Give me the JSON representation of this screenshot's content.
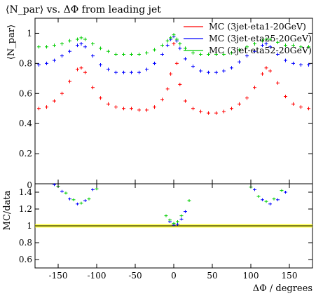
{
  "chart_data": [
    {
      "type": "scatter",
      "title": "⟨N_par⟩ vs. ΔΦ from leading jet",
      "ylabel": "⟨N_par⟩",
      "xlabel": "",
      "xlim": [
        -180,
        180
      ],
      "ylim": [
        0,
        1.1
      ],
      "yticks": [
        "0.2",
        "0.4",
        "0.6",
        "0.8",
        "1"
      ],
      "legend_position": "top-right",
      "series": [
        {
          "name": "MC (3jet-eta1-20GeV)",
          "color": "#ff0000",
          "x": [
            -175,
            -165,
            -155,
            -145,
            -135,
            -125,
            -120,
            -115,
            -105,
            -95,
            -85,
            -75,
            -65,
            -55,
            -45,
            -35,
            -25,
            -15,
            -8,
            -4,
            0,
            4,
            8,
            15,
            25,
            35,
            45,
            55,
            65,
            75,
            85,
            95,
            105,
            115,
            120,
            125,
            135,
            145,
            155,
            165,
            175
          ],
          "y": [
            0.5,
            0.51,
            0.55,
            0.6,
            0.68,
            0.76,
            0.77,
            0.74,
            0.64,
            0.57,
            0.53,
            0.51,
            0.5,
            0.5,
            0.49,
            0.49,
            0.51,
            0.56,
            0.63,
            0.73,
            0.93,
            0.8,
            0.66,
            0.55,
            0.5,
            0.48,
            0.47,
            0.47,
            0.48,
            0.5,
            0.53,
            0.57,
            0.64,
            0.73,
            0.77,
            0.75,
            0.67,
            0.58,
            0.53,
            0.51,
            0.5
          ]
        },
        {
          "name": "MC (3jet-eta25-20GeV)",
          "color": "#0000ff",
          "x": [
            -175,
            -165,
            -155,
            -145,
            -135,
            -125,
            -120,
            -115,
            -105,
            -95,
            -85,
            -75,
            -65,
            -55,
            -45,
            -35,
            -25,
            -15,
            -8,
            -4,
            0,
            4,
            8,
            15,
            25,
            35,
            45,
            55,
            65,
            75,
            85,
            95,
            105,
            115,
            120,
            125,
            135,
            145,
            155,
            165,
            175
          ],
          "y": [
            0.79,
            0.8,
            0.82,
            0.85,
            0.88,
            0.92,
            0.93,
            0.91,
            0.85,
            0.79,
            0.76,
            0.74,
            0.74,
            0.74,
            0.74,
            0.76,
            0.8,
            0.86,
            0.92,
            0.96,
            0.98,
            0.95,
            0.9,
            0.83,
            0.78,
            0.75,
            0.74,
            0.74,
            0.75,
            0.77,
            0.81,
            0.85,
            0.88,
            0.92,
            0.93,
            0.91,
            0.86,
            0.82,
            0.8,
            0.79,
            0.79
          ]
        },
        {
          "name": "MC (3jet-eta52-20GeV)",
          "color": "#00cc00",
          "x": [
            -175,
            -165,
            -155,
            -145,
            -135,
            -125,
            -120,
            -115,
            -105,
            -95,
            -85,
            -75,
            -65,
            -55,
            -45,
            -35,
            -25,
            -15,
            -8,
            -4,
            0,
            4,
            8,
            15,
            25,
            35,
            45,
            55,
            65,
            75,
            85,
            95,
            105,
            115,
            120,
            125,
            135,
            145,
            155,
            165,
            175
          ],
          "y": [
            0.91,
            0.91,
            0.92,
            0.93,
            0.95,
            0.96,
            0.97,
            0.96,
            0.93,
            0.9,
            0.88,
            0.86,
            0.86,
            0.86,
            0.86,
            0.87,
            0.89,
            0.92,
            0.95,
            0.97,
            0.99,
            0.96,
            0.93,
            0.9,
            0.87,
            0.86,
            0.86,
            0.86,
            0.86,
            0.87,
            0.89,
            0.91,
            0.93,
            0.95,
            0.96,
            0.96,
            0.94,
            0.92,
            0.92,
            0.91,
            0.91
          ]
        }
      ]
    },
    {
      "type": "scatter",
      "ylabel": "MC/data",
      "xlabel": "ΔΦ / degrees",
      "xlim": [
        -180,
        180
      ],
      "ylim": [
        0.5,
        1.5
      ],
      "yticks": [
        "0.6",
        "0.8",
        "1",
        "1.2",
        "1.4"
      ],
      "ytick_top": "0",
      "xticks": [
        "-150",
        "-100",
        "-50",
        "0",
        "50",
        "100",
        "150"
      ],
      "band": {
        "color": "#ffff00",
        "center": 1.0,
        "half_width": 0.02
      },
      "series": [
        {
          "name": "MC (3jet-eta25-20GeV)",
          "color": "#0000ff",
          "x": [
            -155,
            -145,
            -135,
            -125,
            -115,
            -105,
            -5,
            0,
            5,
            10,
            15,
            105,
            115,
            125,
            135,
            145
          ],
          "y": [
            1.49,
            1.41,
            1.32,
            1.26,
            1.3,
            1.43,
            1.05,
            1.01,
            1.02,
            1.08,
            1.17,
            1.43,
            1.31,
            1.26,
            1.31,
            1.4
          ]
        },
        {
          "name": "MC (3jet-eta52-20GeV)",
          "color": "#00cc00",
          "x": [
            -150,
            -140,
            -130,
            -120,
            -110,
            -100,
            -10,
            -5,
            0,
            5,
            10,
            20,
            100,
            110,
            120,
            130,
            140
          ],
          "y": [
            1.47,
            1.39,
            1.31,
            1.27,
            1.32,
            1.44,
            1.12,
            1.07,
            1.03,
            1.05,
            1.12,
            1.3,
            1.46,
            1.35,
            1.29,
            1.32,
            1.42
          ]
        }
      ]
    }
  ]
}
